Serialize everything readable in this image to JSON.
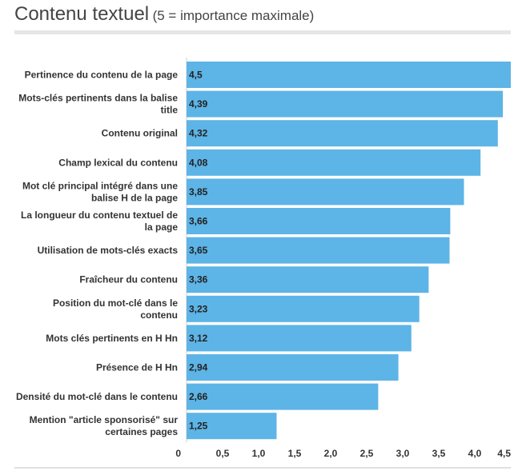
{
  "header": {
    "title": "Contenu textuel",
    "subtitle": "(5 = importance maximale)"
  },
  "chart_data": {
    "type": "bar",
    "orientation": "horizontal",
    "title": "Contenu textuel",
    "subtitle": "(5 = importance maximale)",
    "categories": [
      [
        "Pertinence du contenu de la page"
      ],
      [
        "Mots-clés pertinents dans la balise",
        "title"
      ],
      [
        "Contenu original"
      ],
      [
        "Champ lexical du contenu"
      ],
      [
        "Mot clé principal intégré dans une",
        "balise H de la page"
      ],
      [
        "La longueur du contenu textuel de",
        "la page"
      ],
      [
        "Utilisation de mots-clés exacts"
      ],
      [
        "Fraîcheur du contenu"
      ],
      [
        "Position du mot-clé dans le",
        "contenu"
      ],
      [
        "Mots clés pertinents en H Hn"
      ],
      [
        "Présence de H Hn"
      ],
      [
        "Densité du mot-clé dans le contenu"
      ],
      [
        "Mention \"article sponsorisé\" sur",
        "certaines pages"
      ]
    ],
    "values": [
      4.5,
      4.39,
      4.32,
      4.08,
      3.85,
      3.66,
      3.65,
      3.36,
      3.23,
      3.12,
      2.94,
      2.66,
      1.25
    ],
    "value_labels": [
      "4,5",
      "4,39",
      "4,32",
      "4,08",
      "3,85",
      "3,66",
      "3,65",
      "3,36",
      "3,23",
      "3,12",
      "2,94",
      "2,66",
      "1,25"
    ],
    "xlim": [
      0,
      4.5
    ],
    "x_ticks": [
      0,
      0.5,
      1,
      1.5,
      2,
      2.5,
      3,
      3.5,
      4,
      4.5
    ],
    "x_tick_labels": [
      "0",
      "0,5",
      "1,0",
      "1,5",
      "2,0",
      "2,5",
      "3,0",
      "3,5",
      "4,0",
      "4,5"
    ],
    "bar_color": "#5db4e6",
    "grid": false
  }
}
